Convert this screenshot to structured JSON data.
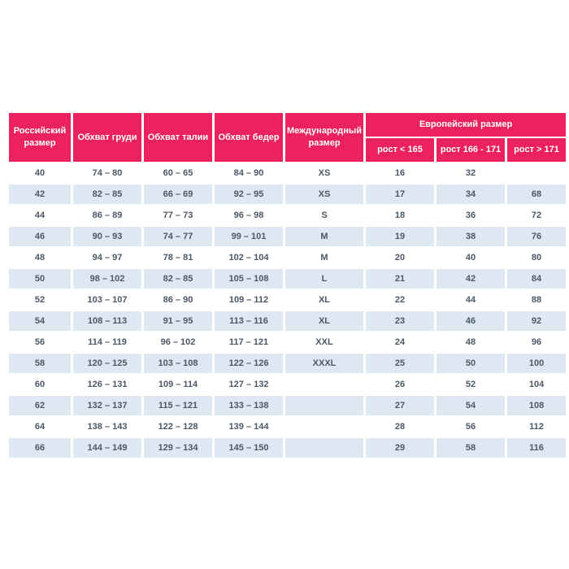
{
  "theme": {
    "header_bg": "#eb2160",
    "stripe_bg": "#dde8f3",
    "cell_text": "#4c5866",
    "header_text": "#ffffff"
  },
  "table": {
    "headers": {
      "russian_size": "Российский размер",
      "chest": "Обхват груди",
      "waist": "Обхват талии",
      "hips": "Обхват бедер",
      "international": "Международный размер",
      "european": "Европейский размер",
      "height_lt_165": "рост < 165",
      "height_166_171": "рост 166 - 171",
      "height_gt_171": "рост > 171"
    },
    "rows": [
      [
        "40",
        "74 – 80",
        "60 – 65",
        "84 – 90",
        "XS",
        "16",
        "32",
        ""
      ],
      [
        "42",
        "82 – 85",
        "66 – 69",
        "92 – 95",
        "XS",
        "17",
        "34",
        "68"
      ],
      [
        "44",
        "86 – 89",
        "77 – 73",
        "96 – 98",
        "S",
        "18",
        "36",
        "72"
      ],
      [
        "46",
        "90 – 93",
        "74 – 77",
        "99 – 101",
        "M",
        "19",
        "38",
        "76"
      ],
      [
        "48",
        "94 – 97",
        "78 – 81",
        "102 – 104",
        "M",
        "20",
        "40",
        "80"
      ],
      [
        "50",
        "98 – 102",
        "82 – 85",
        "105 – 108",
        "L",
        "21",
        "42",
        "84"
      ],
      [
        "52",
        "103 – 107",
        "86 – 90",
        "109 – 112",
        "XL",
        "22",
        "44",
        "88"
      ],
      [
        "54",
        "108 – 113",
        "91 – 95",
        "113 – 116",
        "XL",
        "23",
        "46",
        "92"
      ],
      [
        "56",
        "114 – 119",
        "96 – 102",
        "117 – 121",
        "XXL",
        "24",
        "48",
        "96"
      ],
      [
        "58",
        "120 – 125",
        "103 – 108",
        "122 – 126",
        "XXXL",
        "25",
        "50",
        "100"
      ],
      [
        "60",
        "126 – 131",
        "109 – 114",
        "127 – 132",
        "",
        "26",
        "52",
        "104"
      ],
      [
        "62",
        "132 – 137",
        "115 – 121",
        "133 – 138",
        "",
        "27",
        "54",
        "108"
      ],
      [
        "64",
        "138 – 143",
        "122 – 128",
        "139 – 144",
        "",
        "28",
        "56",
        "112"
      ],
      [
        "66",
        "144 – 149",
        "129 – 134",
        "145 – 150",
        "",
        "29",
        "58",
        "116"
      ]
    ]
  }
}
